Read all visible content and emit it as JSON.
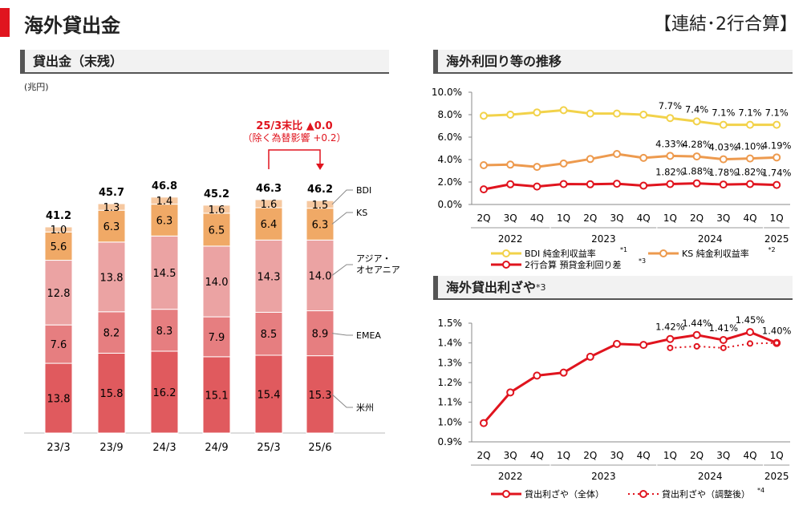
{
  "header": {
    "title": "海外貸出金",
    "scope": "【連結･2行合算】"
  },
  "chart_data": [
    {
      "type": "bar",
      "title": "貸出金（末残）",
      "unit": "(兆円)",
      "categories": [
        "23/3",
        "23/9",
        "24/3",
        "24/9",
        "25/3",
        "25/6"
      ],
      "totals": [
        "41.2",
        "45.7",
        "46.8",
        "45.2",
        "46.3",
        "46.2"
      ],
      "series": [
        {
          "name": "米州",
          "color": "#e05a5e",
          "values": [
            13.8,
            15.8,
            16.2,
            15.1,
            15.4,
            15.3
          ]
        },
        {
          "name": "EMEA",
          "color": "#e67e80",
          "values": [
            7.6,
            8.2,
            8.3,
            7.9,
            8.5,
            8.9
          ]
        },
        {
          "name": "アジア・オセアニア",
          "color": "#eba3a3",
          "values": [
            12.8,
            13.8,
            14.5,
            14.0,
            14.3,
            14.0
          ]
        },
        {
          "name": "KS",
          "color": "#f0a966",
          "values": [
            5.6,
            6.3,
            6.3,
            6.5,
            6.4,
            6.3
          ]
        },
        {
          "name": "BDI",
          "color": "#f6c8a0",
          "values": [
            1.0,
            1.3,
            1.4,
            1.6,
            1.6,
            1.5
          ]
        }
      ],
      "annotation": {
        "line1": "25/3末比 ▲0.0",
        "line2": "（除く為替影響 +0.2）"
      }
    },
    {
      "type": "line",
      "title": "海外利回り等の推移",
      "x": [
        "2Q",
        "3Q",
        "4Q",
        "1Q",
        "2Q",
        "3Q",
        "4Q",
        "1Q",
        "2Q",
        "3Q",
        "4Q",
        "1Q"
      ],
      "years": [
        {
          "label": "2022",
          "from": 0,
          "to": 2
        },
        {
          "label": "2023",
          "from": 3,
          "to": 6
        },
        {
          "label": "2024",
          "from": 7,
          "to": 10
        },
        {
          "label": "2025",
          "from": 11,
          "to": 11
        }
      ],
      "ylim": [
        0,
        10
      ],
      "yticks": [
        "0.0%",
        "2.0%",
        "4.0%",
        "6.0%",
        "8.0%",
        "10.0%"
      ],
      "series": [
        {
          "name": "BDI 純金利収益率",
          "note": "*1",
          "color": "#f2d24a",
          "values": [
            7.9,
            8.0,
            8.2,
            8.4,
            8.1,
            8.1,
            8.0,
            7.7,
            7.4,
            7.1,
            7.1,
            7.1
          ],
          "labels": [
            "",
            "",
            "",
            "",
            "",
            "",
            "",
            "7.7%",
            "7.4%",
            "7.1%",
            "7.1%",
            "7.1%"
          ]
        },
        {
          "name": "KS 純金利収益率",
          "note": "*2",
          "color": "#ed9a4e",
          "values": [
            3.5,
            3.55,
            3.35,
            3.65,
            4.05,
            4.5,
            4.15,
            4.33,
            4.28,
            4.03,
            4.1,
            4.19
          ],
          "labels": [
            "",
            "",
            "",
            "",
            "",
            "",
            "",
            "4.33%",
            "4.28%",
            "4.03%",
            "4.10%",
            "4.19%"
          ]
        },
        {
          "name": "2行合算 預貸金利回り差",
          "note": "*3",
          "color": "#e0141e",
          "values": [
            1.35,
            1.8,
            1.6,
            1.82,
            1.8,
            1.85,
            1.68,
            1.82,
            1.88,
            1.78,
            1.82,
            1.74
          ],
          "labels": [
            "",
            "",
            "",
            "",
            "",
            "",
            "",
            "1.82%",
            "1.88%",
            "1.78%",
            "1.82%",
            "1.74%"
          ]
        }
      ]
    },
    {
      "type": "line",
      "title": "海外貸出利ざや",
      "title_note": "*3",
      "x": [
        "2Q",
        "3Q",
        "4Q",
        "1Q",
        "2Q",
        "3Q",
        "4Q",
        "1Q",
        "2Q",
        "3Q",
        "4Q",
        "1Q"
      ],
      "years": [
        {
          "label": "2022",
          "from": 0,
          "to": 2
        },
        {
          "label": "2023",
          "from": 3,
          "to": 6
        },
        {
          "label": "2024",
          "from": 7,
          "to": 10
        },
        {
          "label": "2025",
          "from": 11,
          "to": 11
        }
      ],
      "ylim": [
        0.9,
        1.5
      ],
      "yticks": [
        "0.9%",
        "1.0%",
        "1.1%",
        "1.2%",
        "1.3%",
        "1.4%",
        "1.5%"
      ],
      "series": [
        {
          "name": "貸出利ざや（全体）",
          "note": "",
          "color": "#e0141e",
          "values": [
            0.995,
            1.15,
            1.235,
            1.25,
            1.33,
            1.395,
            1.39,
            1.42,
            1.44,
            1.415,
            1.455,
            1.4
          ],
          "labels": [
            "",
            "",
            "",
            "",
            "",
            "",
            "",
            "1.42%",
            "1.44%",
            "1.41%",
            "1.45%",
            "1.40%"
          ]
        },
        {
          "name": "貸出利ざや（調整後）",
          "note": "*4",
          "color": "#e0141e",
          "dotted": true,
          "values": [
            null,
            null,
            null,
            null,
            null,
            null,
            null,
            1.375,
            1.383,
            1.375,
            1.397,
            1.4
          ],
          "labels": [
            "",
            "",
            "",
            "",
            "",
            "",
            "",
            "",
            "",
            "",
            "",
            ""
          ]
        }
      ]
    }
  ]
}
